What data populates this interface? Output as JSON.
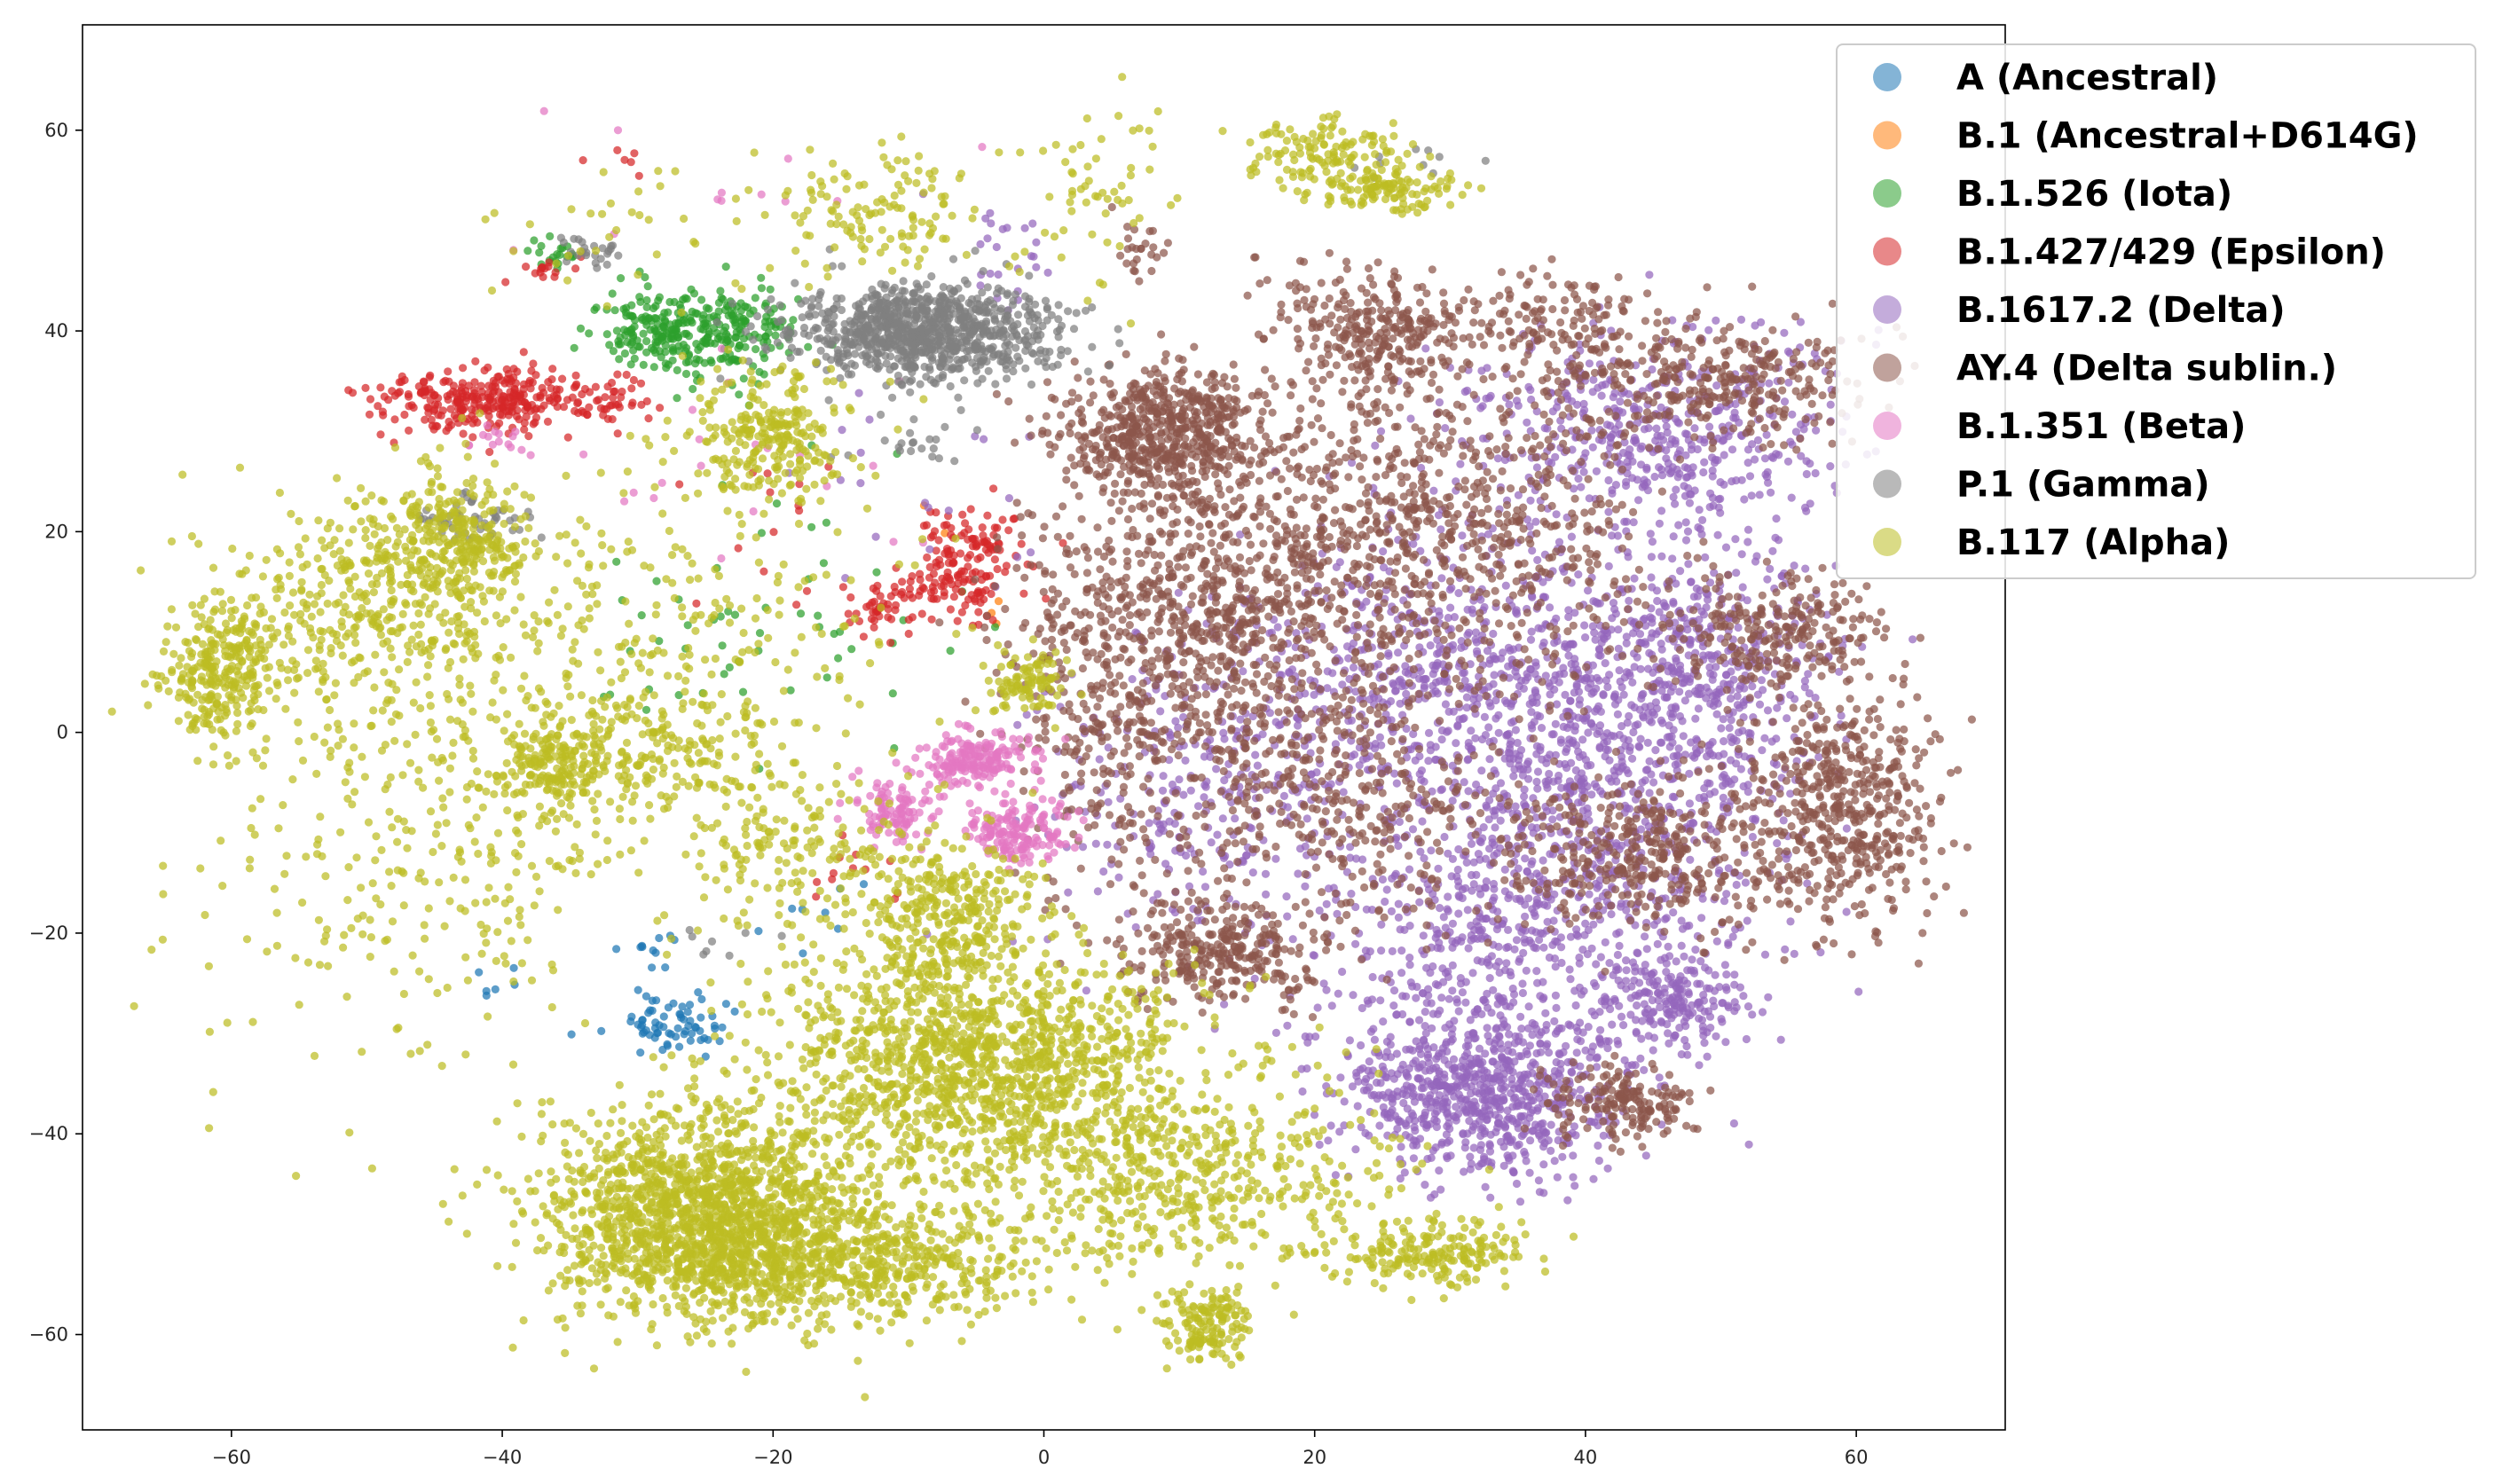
{
  "chart_data": {
    "type": "scatter",
    "title": "",
    "xlabel": "",
    "ylabel": "",
    "xlim": [
      -71,
      71
    ],
    "ylim": [
      -69.5,
      70.5
    ],
    "xticks": [
      -60,
      -40,
      -20,
      0,
      20,
      40,
      60
    ],
    "yticks": [
      -60,
      -40,
      -20,
      0,
      20,
      40,
      60
    ],
    "xtick_labels": [
      "−60",
      "−40",
      "−20",
      "0",
      "20",
      "40",
      "60"
    ],
    "ytick_labels": [
      "−60",
      "−40",
      "−20",
      "0",
      "20",
      "40",
      "60"
    ],
    "grid": false,
    "legend_position": "top-right",
    "series": [
      {
        "name": "A (Ancestral)",
        "color": "#1f77b4",
        "clusters": [
          {
            "center": [
              -28,
              -29
            ],
            "spread": [
              2.5,
              1.8
            ],
            "count": 70
          },
          {
            "center": [
              -29,
              -21
            ],
            "spread": [
              1,
              1
            ],
            "count": 10
          },
          {
            "center": [
              -40,
              -25
            ],
            "spread": [
              2,
              2
            ],
            "count": 6
          },
          {
            "center": [
              -18,
              -18
            ],
            "spread": [
              3,
              3
            ],
            "count": 8
          }
        ]
      },
      {
        "name": "B.1 (Ancestral+D614G)",
        "color": "#ff7f0e",
        "clusters": [
          {
            "center": [
              -3,
              12
            ],
            "spread": [
              1,
              1
            ],
            "count": 3
          },
          {
            "center": [
              -8,
              20
            ],
            "spread": [
              2,
              2
            ],
            "count": 2
          }
        ]
      },
      {
        "name": "B.1.526 (Iota)",
        "color": "#2ca02c",
        "clusters": [
          {
            "center": [
              -29,
              40
            ],
            "spread": [
              2.2,
              2.2
            ],
            "count": 160
          },
          {
            "center": [
              -23,
              40
            ],
            "spread": [
              2.2,
              2.5
            ],
            "count": 160
          },
          {
            "center": [
              -36,
              48
            ],
            "spread": [
              1.5,
              1
            ],
            "count": 20
          },
          {
            "center": [
              -25,
              8
            ],
            "spread": [
              6,
              5
            ],
            "count": 30
          },
          {
            "center": [
              -15,
              10
            ],
            "spread": [
              6,
              8
            ],
            "count": 25
          }
        ]
      },
      {
        "name": "B.1.427/429 (Epsilon)",
        "color": "#d62728",
        "clusters": [
          {
            "center": [
              -41,
              33
            ],
            "spread": [
              4,
              1.5
            ],
            "count": 300
          },
          {
            "center": [
              -5,
              19
            ],
            "spread": [
              1.8,
              2
            ],
            "count": 90
          },
          {
            "center": [
              -7,
              14
            ],
            "spread": [
              2.2,
              1.5
            ],
            "count": 80
          },
          {
            "center": [
              -12,
              12
            ],
            "spread": [
              1.5,
              1.2
            ],
            "count": 40
          },
          {
            "center": [
              -31,
              33
            ],
            "spread": [
              1.5,
              1.5
            ],
            "count": 25
          },
          {
            "center": [
              -37,
              46
            ],
            "spread": [
              1.5,
              0.8
            ],
            "count": 15
          },
          {
            "center": [
              -14,
              -14
            ],
            "spread": [
              2,
              2
            ],
            "count": 12
          },
          {
            "center": [
              -20,
              22
            ],
            "spread": [
              4,
              4
            ],
            "count": 15
          },
          {
            "center": [
              -31,
              57
            ],
            "spread": [
              1,
              1
            ],
            "count": 6
          }
        ]
      },
      {
        "name": "B.1617.2 (Delta)",
        "color": "#9467bd",
        "clusters": [
          {
            "center": [
              32,
              -36
            ],
            "spread": [
              5,
              4
            ],
            "count": 700
          },
          {
            "center": [
              35,
              -20
            ],
            "spread": [
              8,
              8
            ],
            "count": 700
          },
          {
            "center": [
              30,
              5
            ],
            "spread": [
              8,
              8
            ],
            "count": 600
          },
          {
            "center": [
              42,
              0
            ],
            "spread": [
              7,
              9
            ],
            "count": 700
          },
          {
            "center": [
              45,
              30
            ],
            "spread": [
              7,
              5
            ],
            "count": 500
          },
          {
            "center": [
              47,
              -27
            ],
            "spread": [
              3,
              2.5
            ],
            "count": 180
          },
          {
            "center": [
              12,
              -5
            ],
            "spread": [
              6,
              8
            ],
            "count": 300
          },
          {
            "center": [
              50,
              8
            ],
            "spread": [
              4,
              6
            ],
            "count": 250
          },
          {
            "center": [
              -3,
              48
            ],
            "spread": [
              2,
              4
            ],
            "count": 25
          },
          {
            "center": [
              -8,
              25
            ],
            "spread": [
              6,
              6
            ],
            "count": 20
          }
        ]
      },
      {
        "name": "AY.4 (Delta sublin.)",
        "color": "#8c564b",
        "clusters": [
          {
            "center": [
              9,
              30
            ],
            "spread": [
              4,
              3
            ],
            "count": 600
          },
          {
            "center": [
              13,
              12
            ],
            "spread": [
              6,
              8
            ],
            "count": 700
          },
          {
            "center": [
              13,
              -22
            ],
            "spread": [
              3.5,
              2.5
            ],
            "count": 300
          },
          {
            "center": [
              25,
              40
            ],
            "spread": [
              4,
              3
            ],
            "count": 300
          },
          {
            "center": [
              25,
              20
            ],
            "spread": [
              6,
              8
            ],
            "count": 500
          },
          {
            "center": [
              20,
              -6
            ],
            "spread": [
              7,
              6
            ],
            "count": 400
          },
          {
            "center": [
              44,
              -12
            ],
            "spread": [
              6,
              4
            ],
            "count": 400
          },
          {
            "center": [
              59,
              -8
            ],
            "spread": [
              3.5,
              6
            ],
            "count": 500
          },
          {
            "center": [
              50,
              35
            ],
            "spread": [
              5,
              3
            ],
            "count": 300
          },
          {
            "center": [
              54,
              10
            ],
            "spread": [
              4,
              3
            ],
            "count": 250
          },
          {
            "center": [
              43,
              -37
            ],
            "spread": [
              3,
              1.8
            ],
            "count": 180
          },
          {
            "center": [
              4,
              5
            ],
            "spread": [
              4,
              10
            ],
            "count": 300
          },
          {
            "center": [
              36,
              20
            ],
            "spread": [
              5,
              8
            ],
            "count": 300
          },
          {
            "center": [
              38,
              40
            ],
            "spread": [
              3,
              3
            ],
            "count": 150
          },
          {
            "center": [
              7,
              48
            ],
            "spread": [
              1,
              1.5
            ],
            "count": 25
          }
        ]
      },
      {
        "name": "B.1.351 (Beta)",
        "color": "#e377c2",
        "clusters": [
          {
            "center": [
              -5,
              -3
            ],
            "spread": [
              2.2,
              1.5
            ],
            "count": 180
          },
          {
            "center": [
              -2,
              -10
            ],
            "spread": [
              2,
              1.5
            ],
            "count": 160
          },
          {
            "center": [
              -11,
              -8
            ],
            "spread": [
              1.5,
              1.5
            ],
            "count": 100
          },
          {
            "center": [
              -40,
              29
            ],
            "spread": [
              1.2,
              0.7
            ],
            "count": 15
          },
          {
            "center": [
              -20,
              25
            ],
            "spread": [
              5,
              5
            ],
            "count": 20
          },
          {
            "center": [
              -20,
              55
            ],
            "spread": [
              10,
              3
            ],
            "count": 12
          }
        ]
      },
      {
        "name": "P.1 (Gamma)",
        "color": "#7f7f7f",
        "clusters": [
          {
            "center": [
              -9,
              40
            ],
            "spread": [
              5,
              2.3
            ],
            "count": 900
          },
          {
            "center": [
              -42,
              21
            ],
            "spread": [
              2,
              1.2
            ],
            "count": 50
          },
          {
            "center": [
              -34,
              48
            ],
            "spread": [
              2,
              0.7
            ],
            "count": 25
          },
          {
            "center": [
              -10,
              30
            ],
            "spread": [
              3,
              2
            ],
            "count": 25
          },
          {
            "center": [
              -24,
              -21
            ],
            "spread": [
              2,
              1
            ],
            "count": 8
          },
          {
            "center": [
              25,
              57
            ],
            "spread": [
              3,
              1
            ],
            "count": 10
          }
        ]
      },
      {
        "name": "B.117 (Alpha)",
        "color": "#bcbd22",
        "clusters": [
          {
            "center": [
              -25,
              -48
            ],
            "spread": [
              6,
              5
            ],
            "count": 1600
          },
          {
            "center": [
              -5,
              -33
            ],
            "spread": [
              8,
              6
            ],
            "count": 1400
          },
          {
            "center": [
              -15,
              -53
            ],
            "spread": [
              7,
              3
            ],
            "count": 600
          },
          {
            "center": [
              10,
              -44
            ],
            "spread": [
              8,
              5
            ],
            "count": 500
          },
          {
            "center": [
              -7,
              -18
            ],
            "spread": [
              3,
              4
            ],
            "count": 300
          },
          {
            "center": [
              12,
              -59
            ],
            "spread": [
              1.5,
              2
            ],
            "count": 150
          },
          {
            "center": [
              28,
              -52
            ],
            "spread": [
              4,
              1.5
            ],
            "count": 200
          },
          {
            "center": [
              -61,
              6
            ],
            "spread": [
              2,
              3
            ],
            "count": 250
          },
          {
            "center": [
              -50,
              12
            ],
            "spread": [
              6,
              6
            ],
            "count": 400
          },
          {
            "center": [
              -44,
              19
            ],
            "spread": [
              3,
              3
            ],
            "count": 300
          },
          {
            "center": [
              -36,
              -3
            ],
            "spread": [
              2,
              2.5
            ],
            "count": 200
          },
          {
            "center": [
              -28,
              -2
            ],
            "spread": [
              4,
              3
            ],
            "count": 150
          },
          {
            "center": [
              -20,
              30
            ],
            "spread": [
              3,
              3
            ],
            "count": 250
          },
          {
            "center": [
              -45,
              -10
            ],
            "spread": [
              10,
              12
            ],
            "count": 400
          },
          {
            "center": [
              -25,
              10
            ],
            "spread": [
              8,
              10
            ],
            "count": 250
          },
          {
            "center": [
              -13,
              52
            ],
            "spread": [
              4,
              3
            ],
            "count": 120
          },
          {
            "center": [
              21,
              58
            ],
            "spread": [
              3,
              1.5
            ],
            "count": 120
          },
          {
            "center": [
              25,
              54
            ],
            "spread": [
              3,
              1.2
            ],
            "count": 120
          },
          {
            "center": [
              -1,
              5
            ],
            "spread": [
              1.5,
              1.5
            ],
            "count": 100
          },
          {
            "center": [
              -18,
              -12
            ],
            "spread": [
              4,
              4
            ],
            "count": 150
          },
          {
            "center": [
              4,
              55
            ],
            "spread": [
              3,
              5
            ],
            "count": 60
          },
          {
            "center": [
              -30,
              50
            ],
            "spread": [
              6,
              4
            ],
            "count": 40
          }
        ]
      }
    ]
  }
}
